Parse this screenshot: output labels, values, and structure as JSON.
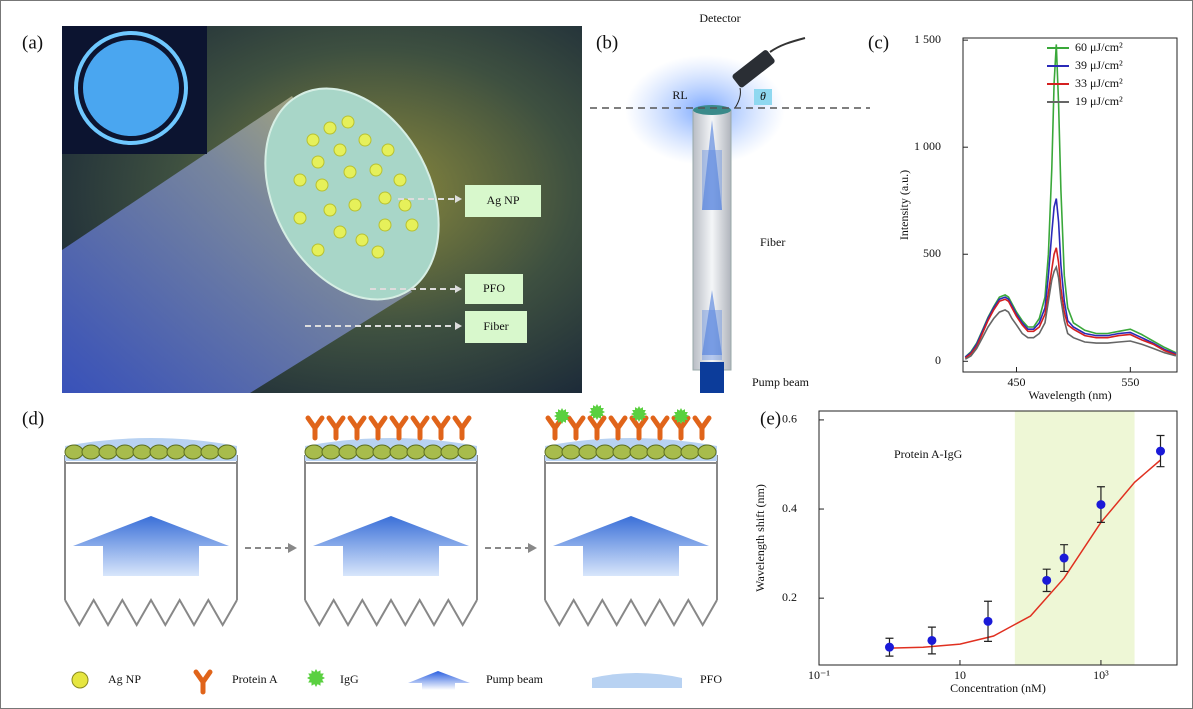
{
  "panels": {
    "a": {
      "label": "(a)",
      "callouts": [
        "Ag NP",
        "PFO",
        "Fiber"
      ]
    },
    "b": {
      "label": "(b)",
      "detector": "Detector",
      "rl": "RL",
      "theta": "θ",
      "fiber": "Fiber",
      "pump": "Pump beam"
    },
    "c": {
      "label": "(c)"
    },
    "d": {
      "label": "(d)",
      "legend": [
        "Ag NP",
        "Protein A",
        "IgG",
        "Pump beam",
        "PFO"
      ]
    },
    "e": {
      "label": "(e)"
    }
  },
  "chart_data": [
    {
      "type": "line",
      "xlabel": "Wavelength (nm)",
      "ylabel": "Intensity (a.u.)",
      "x": [
        405,
        410,
        415,
        420,
        425,
        430,
        435,
        440,
        443,
        446,
        450,
        455,
        460,
        465,
        470,
        475,
        478,
        481,
        483,
        485,
        487,
        489,
        492,
        495,
        500,
        510,
        520,
        530,
        540,
        550,
        560,
        570,
        580,
        590
      ],
      "series": [
        {
          "name": "60 μJ/cm²",
          "color": "#3aa83a",
          "values": [
            20,
            45,
            85,
            145,
            205,
            255,
            300,
            310,
            300,
            270,
            230,
            190,
            160,
            160,
            200,
            300,
            500,
            900,
            1300,
            1480,
            1200,
            800,
            400,
            250,
            180,
            145,
            130,
            130,
            140,
            150,
            125,
            95,
            65,
            40
          ]
        },
        {
          "name": "39 μJ/cm²",
          "color": "#2a2ab8",
          "values": [
            20,
            40,
            80,
            140,
            200,
            250,
            290,
            300,
            290,
            260,
            220,
            180,
            150,
            150,
            180,
            250,
            400,
            600,
            720,
            760,
            650,
            450,
            280,
            190,
            160,
            130,
            120,
            120,
            130,
            135,
            110,
            85,
            55,
            35
          ]
        },
        {
          "name": "33 μJ/cm²",
          "color": "#d42020",
          "values": [
            15,
            35,
            70,
            130,
            190,
            240,
            280,
            290,
            280,
            250,
            210,
            170,
            140,
            140,
            160,
            220,
            320,
            430,
            500,
            530,
            460,
            340,
            230,
            170,
            150,
            120,
            110,
            110,
            120,
            125,
            100,
            80,
            50,
            30
          ]
        },
        {
          "name": "19 μJ/cm²",
          "color": "#666666",
          "values": [
            10,
            25,
            60,
            110,
            160,
            200,
            230,
            240,
            230,
            200,
            170,
            130,
            110,
            110,
            130,
            180,
            280,
            380,
            420,
            440,
            390,
            290,
            190,
            130,
            110,
            90,
            85,
            85,
            90,
            95,
            80,
            60,
            40,
            25
          ]
        }
      ],
      "xlim": [
        403,
        591
      ],
      "xticks": [
        450,
        550
      ],
      "ylim": [
        -50,
        1510
      ],
      "yticks": [
        0,
        500,
        {
          "value": 1000,
          "label": "1 000"
        },
        {
          "value": 1500,
          "label": "1 500"
        }
      ],
      "legend": "upper right"
    },
    {
      "type": "scatter",
      "xlabel": "Concentration (nM)",
      "ylabel": "Wavelength shift (nm)",
      "annotation": "Protein A-IgG",
      "xscale": "log",
      "x": [
        1,
        4,
        25,
        170,
        300,
        1000,
        7000
      ],
      "values": [
        0.09,
        0.105,
        0.148,
        0.24,
        0.29,
        0.41,
        0.53
      ],
      "errors": [
        0.02,
        0.03,
        0.045,
        0.025,
        0.03,
        0.04,
        0.035
      ],
      "color": "#1a1ad8",
      "fit": {
        "x": [
          1,
          3,
          10,
          30,
          100,
          300,
          1000,
          3000,
          7000
        ],
        "values": [
          0.088,
          0.09,
          0.097,
          0.115,
          0.16,
          0.245,
          0.37,
          0.46,
          0.51
        ],
        "color": "#e03020"
      },
      "highlight": {
        "xlim": [
          60,
          3000
        ],
        "color": "#eef7d6"
      },
      "xlim": [
        0.1,
        12000
      ],
      "xticks": [
        {
          "value": 0.1,
          "label": "10⁻¹"
        },
        10,
        {
          "value": 1000,
          "label": "10³"
        }
      ],
      "ylim": [
        0.05,
        0.62
      ],
      "yticks": [
        0.2,
        0.4,
        0.6
      ]
    }
  ]
}
